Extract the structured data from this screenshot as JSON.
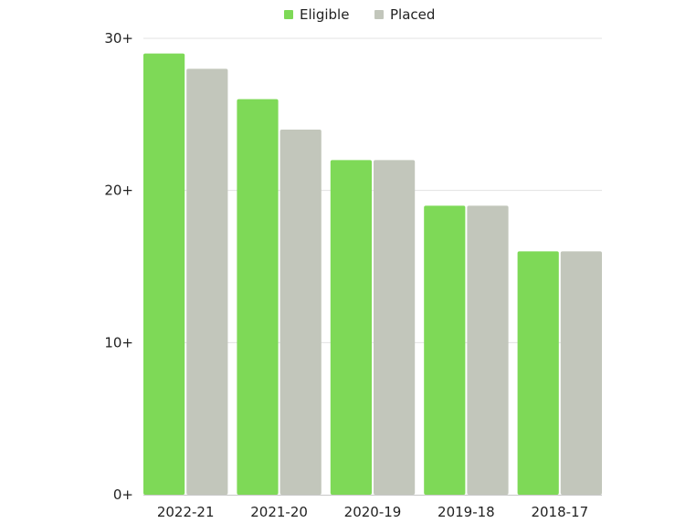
{
  "chart_data": {
    "type": "bar",
    "categories": [
      "2022-21",
      "2021-20",
      "2020-19",
      "2019-18",
      "2018-17"
    ],
    "series": [
      {
        "name": "Eligible",
        "color": "#7ed957",
        "values": [
          29,
          26,
          22,
          19,
          16
        ]
      },
      {
        "name": "Placed",
        "color": "#c2c6bb",
        "values": [
          28,
          24,
          22,
          19,
          16
        ]
      }
    ],
    "ylim": [
      0,
      30
    ],
    "y_ticks": [
      {
        "value": 0,
        "label": "0+"
      },
      {
        "value": 10,
        "label": "10+"
      },
      {
        "value": 20,
        "label": "20+"
      },
      {
        "value": 30,
        "label": "30+"
      }
    ],
    "grid": true,
    "legend_position": "top-center",
    "colors": {
      "grid": "#e3e3e3",
      "axis": "#c8c8c8"
    }
  }
}
